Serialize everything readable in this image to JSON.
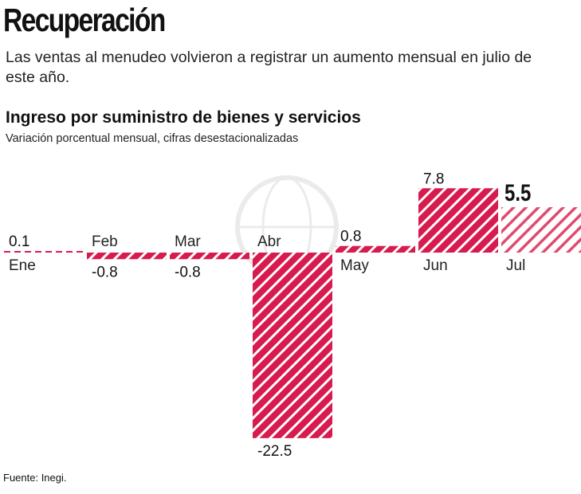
{
  "header": {
    "title": "Recuperación",
    "subtitle": "Las ventas al menudeo volvieron a registrar un aumento mensual en julio de este año."
  },
  "chart_data": {
    "type": "bar",
    "title": "Ingreso por suministro de bienes y servicios",
    "subtitle": "Variación porcentual mensual, cifras desestacionalizadas",
    "categories": [
      "Ene",
      "Feb",
      "Mar",
      "Abr",
      "May",
      "Jun",
      "Jul"
    ],
    "values": [
      0.1,
      -0.8,
      -0.8,
      -22.5,
      0.8,
      7.8,
      5.5
    ],
    "value_labels": [
      "0.1",
      "-0.8",
      "-0.8",
      "-22.5",
      "0.8",
      "7.8",
      "5.5"
    ],
    "highlight": "Jul",
    "colors": {
      "bar": "#d81b4f",
      "highlight_stripes": "#e04a6e"
    }
  },
  "footer": {
    "source": "Fuente: Inegi."
  }
}
